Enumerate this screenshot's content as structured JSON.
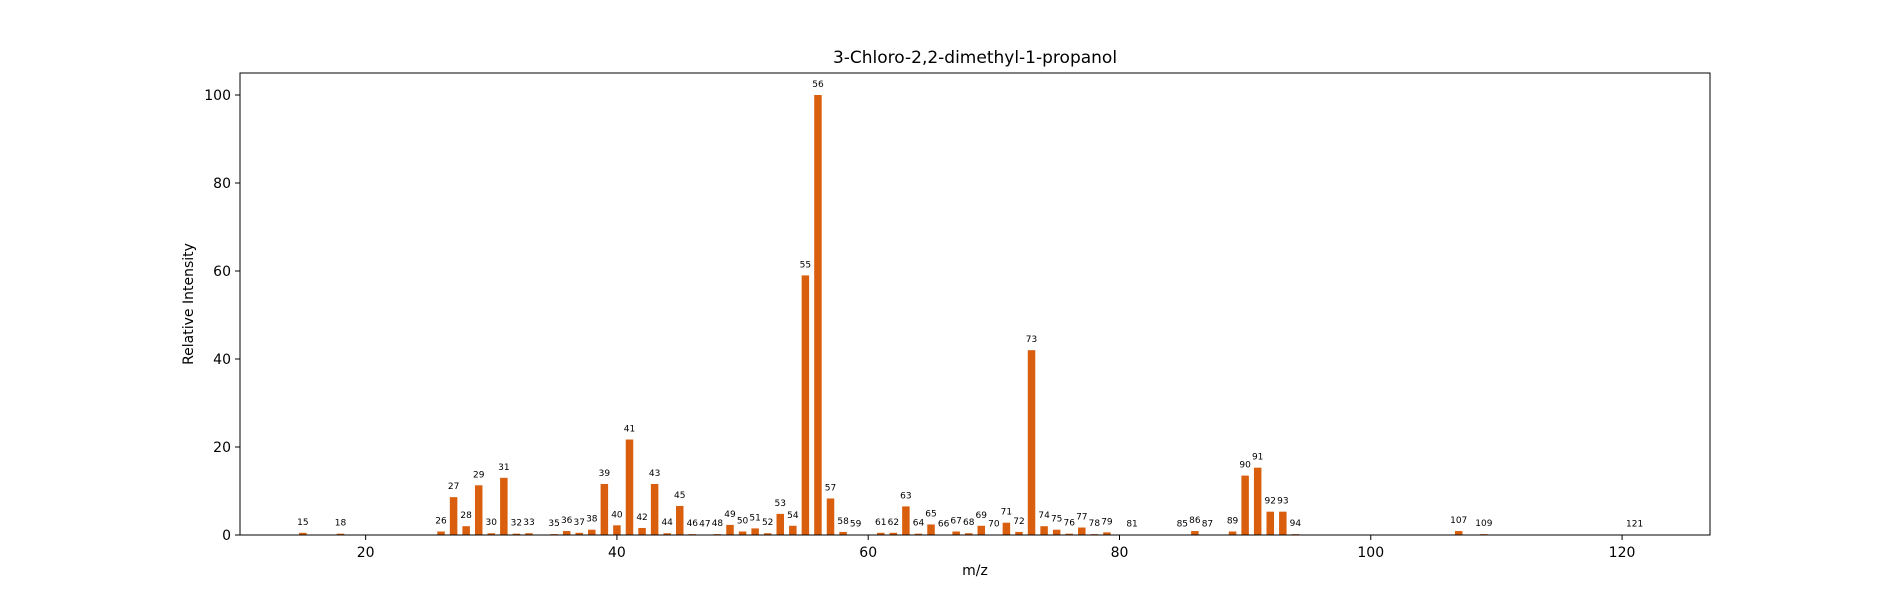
{
  "chart_data": {
    "type": "bar",
    "title": "3-Chloro-2,2-dimethyl-1-propanol",
    "xlabel": "m/z",
    "ylabel": "Relative Intensity",
    "xlim": [
      10,
      127
    ],
    "ylim": [
      0,
      105
    ],
    "xticks": [
      20,
      40,
      60,
      80,
      100,
      120
    ],
    "yticks": [
      0,
      20,
      40,
      60,
      80,
      100
    ],
    "bar_color": "#d95f0e",
    "grid": false,
    "x": [
      15,
      18,
      26,
      27,
      28,
      29,
      30,
      31,
      32,
      33,
      35,
      36,
      37,
      38,
      39,
      40,
      41,
      42,
      43,
      44,
      45,
      46,
      47,
      48,
      49,
      50,
      51,
      52,
      53,
      54,
      55,
      56,
      57,
      58,
      59,
      61,
      62,
      63,
      64,
      65,
      66,
      67,
      68,
      69,
      70,
      71,
      72,
      73,
      74,
      75,
      76,
      77,
      78,
      79,
      81,
      85,
      86,
      87,
      89,
      90,
      91,
      92,
      93,
      94,
      107,
      109,
      121
    ],
    "values": [
      0.5,
      0.3,
      0.8,
      8.6,
      2.0,
      11.3,
      0.4,
      13.0,
      0.3,
      0.4,
      0.2,
      0.9,
      0.5,
      1.2,
      11.6,
      2.2,
      21.7,
      1.6,
      11.6,
      0.4,
      6.6,
      0.2,
      0.1,
      0.2,
      2.3,
      0.8,
      1.5,
      0.4,
      4.8,
      2.1,
      59.0,
      100.0,
      8.3,
      0.7,
      0.1,
      0.5,
      0.5,
      6.5,
      0.3,
      2.4,
      0.1,
      0.8,
      0.4,
      2.1,
      0.1,
      2.8,
      0.7,
      42.0,
      2.0,
      1.2,
      0.3,
      1.7,
      0.2,
      0.6,
      0.1,
      0.1,
      0.9,
      0.1,
      0.8,
      13.5,
      15.3,
      5.3,
      5.3,
      0.2,
      0.9,
      0.2,
      0.1
    ]
  }
}
